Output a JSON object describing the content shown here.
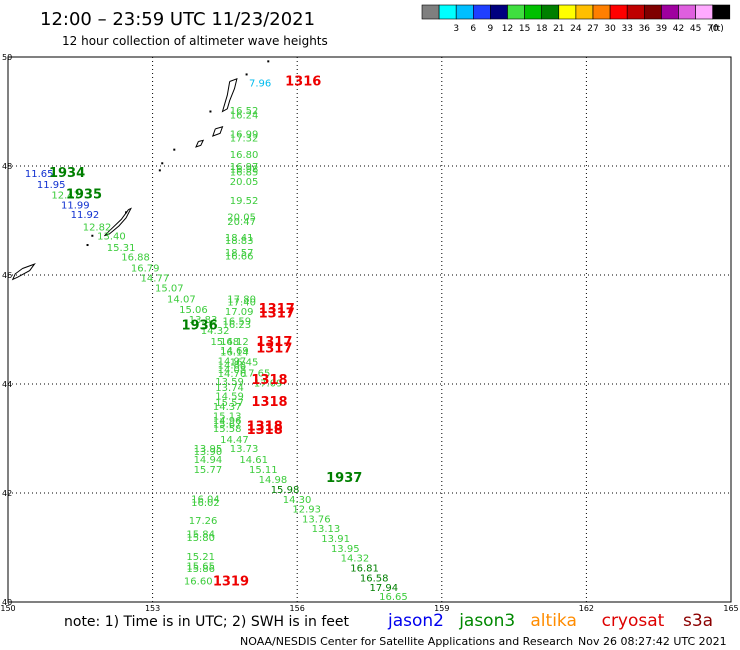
{
  "header": {
    "title": "12:00 – 23:59 UTC 11/23/2021",
    "subtitle": "12 hour collection of altimeter wave heights"
  },
  "legend": {
    "unit": "(ft)",
    "bins": [
      {
        "label": "",
        "color": "#7f7f7f"
      },
      {
        "label": "3",
        "color": "#00ffff"
      },
      {
        "label": "6",
        "color": "#00bfff"
      },
      {
        "label": "9",
        "color": "#1f3fff"
      },
      {
        "label": "12",
        "color": "#00007f"
      },
      {
        "label": "15",
        "color": "#3fdf3f"
      },
      {
        "label": "18",
        "color": "#00c000"
      },
      {
        "label": "21",
        "color": "#007f00"
      },
      {
        "label": "24",
        "color": "#ffff00"
      },
      {
        "label": "27",
        "color": "#ffbf00"
      },
      {
        "label": "30",
        "color": "#ff7f00"
      },
      {
        "label": "33",
        "color": "#ff0000"
      },
      {
        "label": "36",
        "color": "#bf0000"
      },
      {
        "label": "39",
        "color": "#7f0000"
      },
      {
        "label": "42",
        "color": "#9f009f"
      },
      {
        "label": "45",
        "color": "#df5fdf"
      },
      {
        "label": "70",
        "color": "#ffaaff"
      },
      {
        "label": "",
        "color": "#000000"
      }
    ]
  },
  "footer": {
    "note": "note:  1) Time is in UTC;  2) SWH is in feet",
    "credit": "NOAA/NESDIS Center for Satellite Applications and Research",
    "timestamp": "Nov 26 08:27:42 UTC 2021"
  },
  "chart_data": {
    "type": "scatter",
    "xlim": [
      150,
      165
    ],
    "ylim": [
      40,
      50
    ],
    "x_ticks": [
      "150",
      "153",
      "156",
      "159",
      "162",
      "165"
    ],
    "y_ticks": [
      "40",
      "42",
      "44",
      "46",
      "48",
      "50"
    ],
    "grid": true,
    "series_legend": [
      {
        "name": "jason2",
        "color": "#0000ee"
      },
      {
        "name": "jason3",
        "color": "#008800"
      },
      {
        "name": "altika",
        "color": "#ff8c00"
      },
      {
        "name": "cryosat",
        "color": "#dd0000"
      },
      {
        "name": "s3a",
        "color": "#8b0000"
      }
    ],
    "point_colors": {
      "cyan": "#00bbee",
      "blue": "#1030d0",
      "light": "#3ccc3c",
      "dark": "#007f00",
      "red": "#ee0000"
    },
    "time_labels": [
      {
        "text": "1316",
        "x": 155.75,
        "y": 49.48,
        "color": "red"
      },
      {
        "text": "1934",
        "x": 150.85,
        "y": 47.8,
        "color": "dark"
      },
      {
        "text": "1935",
        "x": 151.2,
        "y": 47.4,
        "color": "dark"
      },
      {
        "text": "1317",
        "x": 155.2,
        "y": 45.3,
        "color": "red"
      },
      {
        "text": "1317",
        "x": 155.2,
        "y": 45.22,
        "color": "red"
      },
      {
        "text": "1317",
        "x": 155.15,
        "y": 44.7,
        "color": "red"
      },
      {
        "text": "1317",
        "x": 155.15,
        "y": 44.58,
        "color": "red"
      },
      {
        "text": "1936",
        "x": 153.6,
        "y": 45.0,
        "color": "dark"
      },
      {
        "text": "1318",
        "x": 155.05,
        "y": 44.0,
        "color": "red"
      },
      {
        "text": "1318",
        "x": 155.05,
        "y": 43.6,
        "color": "red"
      },
      {
        "text": "1318",
        "x": 154.95,
        "y": 43.15,
        "color": "red"
      },
      {
        "text": "1318",
        "x": 154.95,
        "y": 43.08,
        "color": "red"
      },
      {
        "text": "1937",
        "x": 156.6,
        "y": 42.2,
        "color": "dark"
      },
      {
        "text": "1319",
        "x": 154.25,
        "y": 40.3,
        "color": "red"
      }
    ],
    "points": [
      {
        "v": "7.96",
        "x": 155.0,
        "y": 49.46,
        "c": "cyan"
      },
      {
        "v": "16.52",
        "x": 154.6,
        "y": 48.95,
        "c": "light"
      },
      {
        "v": "16.24",
        "x": 154.6,
        "y": 48.87,
        "c": "light"
      },
      {
        "v": "16.99",
        "x": 154.6,
        "y": 48.52,
        "c": "light"
      },
      {
        "v": "17.32",
        "x": 154.6,
        "y": 48.45,
        "c": "light"
      },
      {
        "v": "16.80",
        "x": 154.6,
        "y": 48.15,
        "c": "light"
      },
      {
        "v": "16.97",
        "x": 154.6,
        "y": 47.93,
        "c": "light"
      },
      {
        "v": "16.98",
        "x": 154.6,
        "y": 47.88,
        "c": "light"
      },
      {
        "v": "16.85",
        "x": 154.6,
        "y": 47.83,
        "c": "light"
      },
      {
        "v": "20.05",
        "x": 154.6,
        "y": 47.65,
        "c": "light"
      },
      {
        "v": "19.52",
        "x": 154.6,
        "y": 47.3,
        "c": "light"
      },
      {
        "v": "20.05",
        "x": 154.55,
        "y": 47.0,
        "c": "light"
      },
      {
        "v": "20.47",
        "x": 154.55,
        "y": 46.92,
        "c": "light"
      },
      {
        "v": "18.41",
        "x": 154.5,
        "y": 46.62,
        "c": "light"
      },
      {
        "v": "18.83",
        "x": 154.5,
        "y": 46.57,
        "c": "light"
      },
      {
        "v": "18.57",
        "x": 154.5,
        "y": 46.35,
        "c": "light"
      },
      {
        "v": "16.66",
        "x": 154.5,
        "y": 46.28,
        "c": "light"
      },
      {
        "v": "11.65",
        "x": 150.35,
        "y": 47.8,
        "c": "blue"
      },
      {
        "v": "11.95",
        "x": 150.6,
        "y": 47.6,
        "c": "blue"
      },
      {
        "v": "12.47",
        "x": 150.9,
        "y": 47.4,
        "c": "light"
      },
      {
        "v": "11.99",
        "x": 151.1,
        "y": 47.22,
        "c": "blue"
      },
      {
        "v": "11.92",
        "x": 151.3,
        "y": 47.05,
        "c": "blue"
      },
      {
        "v": "12.82",
        "x": 151.55,
        "y": 46.82,
        "c": "light"
      },
      {
        "v": "13.40",
        "x": 151.85,
        "y": 46.65,
        "c": "light"
      },
      {
        "v": "15.31",
        "x": 152.05,
        "y": 46.44,
        "c": "light"
      },
      {
        "v": "16.88",
        "x": 152.35,
        "y": 46.27,
        "c": "light"
      },
      {
        "v": "16.79",
        "x": 152.55,
        "y": 46.06,
        "c": "light"
      },
      {
        "v": "14.77",
        "x": 152.75,
        "y": 45.88,
        "c": "light"
      },
      {
        "v": "15.07",
        "x": 153.05,
        "y": 45.7,
        "c": "light"
      },
      {
        "v": "14.07",
        "x": 153.3,
        "y": 45.5,
        "c": "light"
      },
      {
        "v": "15.06",
        "x": 153.55,
        "y": 45.3,
        "c": "light"
      },
      {
        "v": "13.83",
        "x": 153.75,
        "y": 45.12,
        "c": "light"
      },
      {
        "v": "14.32",
        "x": 154.0,
        "y": 44.92,
        "c": "light"
      },
      {
        "v": "15.68",
        "x": 154.2,
        "y": 44.72,
        "c": "light"
      },
      {
        "v": "16.14",
        "x": 154.4,
        "y": 44.52,
        "c": "light"
      },
      {
        "v": "16.45",
        "x": 154.6,
        "y": 44.34,
        "c": "light"
      },
      {
        "v": "17.65",
        "x": 154.85,
        "y": 44.14,
        "c": "light"
      },
      {
        "v": "17.09",
        "x": 155.1,
        "y": 43.95,
        "c": "light"
      },
      {
        "v": "17.80",
        "x": 154.55,
        "y": 45.5,
        "c": "light"
      },
      {
        "v": "17.40",
        "x": 154.55,
        "y": 45.44,
        "c": "light"
      },
      {
        "v": "17.09",
        "x": 154.5,
        "y": 45.27,
        "c": "light"
      },
      {
        "v": "16.59",
        "x": 154.45,
        "y": 45.09,
        "c": "light"
      },
      {
        "v": "16.23",
        "x": 154.45,
        "y": 45.03,
        "c": "light"
      },
      {
        "v": "14.12",
        "x": 154.4,
        "y": 44.72,
        "c": "light"
      },
      {
        "v": "14.69",
        "x": 154.4,
        "y": 44.55,
        "c": "light"
      },
      {
        "v": "14.97",
        "x": 154.35,
        "y": 44.36,
        "c": "light"
      },
      {
        "v": "14.88",
        "x": 154.35,
        "y": 44.28,
        "c": "light"
      },
      {
        "v": "14.08",
        "x": 154.35,
        "y": 44.2,
        "c": "light"
      },
      {
        "v": "14.76",
        "x": 154.35,
        "y": 44.13,
        "c": "light"
      },
      {
        "v": "13.59",
        "x": 154.3,
        "y": 43.98,
        "c": "light"
      },
      {
        "v": "13.74",
        "x": 154.3,
        "y": 43.87,
        "c": "light"
      },
      {
        "v": "14.59",
        "x": 154.3,
        "y": 43.72,
        "c": "light"
      },
      {
        "v": "15.57",
        "x": 154.3,
        "y": 43.6,
        "c": "light"
      },
      {
        "v": "14.37",
        "x": 154.25,
        "y": 43.52,
        "c": "light"
      },
      {
        "v": "15.13",
        "x": 154.25,
        "y": 43.35,
        "c": "light"
      },
      {
        "v": "14.96",
        "x": 154.25,
        "y": 43.27,
        "c": "light"
      },
      {
        "v": "15.67",
        "x": 154.25,
        "y": 43.2,
        "c": "light"
      },
      {
        "v": "15.58",
        "x": 154.25,
        "y": 43.12,
        "c": "light"
      },
      {
        "v": "14.47",
        "x": 154.4,
        "y": 42.92,
        "c": "light"
      },
      {
        "v": "13.73",
        "x": 154.6,
        "y": 42.75,
        "c": "light"
      },
      {
        "v": "14.61",
        "x": 154.8,
        "y": 42.55,
        "c": "light"
      },
      {
        "v": "15.11",
        "x": 155.0,
        "y": 42.37,
        "c": "light"
      },
      {
        "v": "14.98",
        "x": 155.2,
        "y": 42.18,
        "c": "light"
      },
      {
        "v": "15.98",
        "x": 155.45,
        "y": 42.0,
        "c": "dark"
      },
      {
        "v": "14.30",
        "x": 155.7,
        "y": 41.82,
        "c": "light"
      },
      {
        "v": "12.93",
        "x": 155.9,
        "y": 41.64,
        "c": "light"
      },
      {
        "v": "13.76",
        "x": 156.1,
        "y": 41.46,
        "c": "light"
      },
      {
        "v": "13.13",
        "x": 156.3,
        "y": 41.28,
        "c": "light"
      },
      {
        "v": "13.91",
        "x": 156.5,
        "y": 41.1,
        "c": "light"
      },
      {
        "v": "13.95",
        "x": 156.7,
        "y": 40.92,
        "c": "light"
      },
      {
        "v": "14.32",
        "x": 156.9,
        "y": 40.74,
        "c": "light"
      },
      {
        "v": "16.81",
        "x": 157.1,
        "y": 40.56,
        "c": "dark"
      },
      {
        "v": "16.58",
        "x": 157.3,
        "y": 40.38,
        "c": "dark"
      },
      {
        "v": "17.94",
        "x": 157.5,
        "y": 40.2,
        "c": "dark"
      },
      {
        "v": "16.65",
        "x": 157.7,
        "y": 40.04,
        "c": "light"
      },
      {
        "v": "13.95",
        "x": 153.85,
        "y": 42.75,
        "c": "light"
      },
      {
        "v": "13.90",
        "x": 153.85,
        "y": 42.7,
        "c": "light"
      },
      {
        "v": "14.94",
        "x": 153.85,
        "y": 42.55,
        "c": "light"
      },
      {
        "v": "15.77",
        "x": 153.85,
        "y": 42.37,
        "c": "light"
      },
      {
        "v": "16.04",
        "x": 153.8,
        "y": 41.83,
        "c": "light"
      },
      {
        "v": "16.02",
        "x": 153.8,
        "y": 41.76,
        "c": "light"
      },
      {
        "v": "17.26",
        "x": 153.75,
        "y": 41.43,
        "c": "light"
      },
      {
        "v": "15.84",
        "x": 153.7,
        "y": 41.18,
        "c": "light"
      },
      {
        "v": "15.80",
        "x": 153.7,
        "y": 41.12,
        "c": "light"
      },
      {
        "v": "15.21",
        "x": 153.7,
        "y": 40.77,
        "c": "light"
      },
      {
        "v": "15.65",
        "x": 153.7,
        "y": 40.6,
        "c": "light"
      },
      {
        "v": "15.86",
        "x": 153.7,
        "y": 40.55,
        "c": "light"
      },
      {
        "v": "16.60",
        "x": 153.65,
        "y": 40.32,
        "c": "light"
      }
    ],
    "islands": [
      [
        [
          154.6,
          49.55
        ],
        [
          154.75,
          49.6
        ],
        [
          154.7,
          49.42
        ],
        [
          154.6,
          49.2
        ],
        [
          154.55,
          49.05
        ],
        [
          154.45,
          49.0
        ],
        [
          154.5,
          49.15
        ],
        [
          154.55,
          49.3
        ],
        [
          154.6,
          49.55
        ]
      ],
      [
        [
          154.3,
          48.68
        ],
        [
          154.45,
          48.72
        ],
        [
          154.4,
          48.6
        ],
        [
          154.25,
          48.55
        ],
        [
          154.3,
          48.68
        ]
      ],
      [
        [
          153.95,
          48.45
        ],
        [
          154.05,
          48.47
        ],
        [
          154.0,
          48.38
        ],
        [
          153.9,
          48.35
        ],
        [
          153.95,
          48.45
        ]
      ],
      [
        [
          152.5,
          47.2
        ],
        [
          152.55,
          47.22
        ],
        [
          152.45,
          47.05
        ],
        [
          152.3,
          46.9
        ],
        [
          152.1,
          46.75
        ],
        [
          152.0,
          46.72
        ],
        [
          152.15,
          46.85
        ],
        [
          152.35,
          47.02
        ],
        [
          152.5,
          47.2
        ]
      ],
      [
        [
          150.3,
          46.12
        ],
        [
          150.55,
          46.2
        ],
        [
          150.45,
          46.08
        ],
        [
          150.2,
          45.96
        ],
        [
          150.1,
          45.92
        ],
        [
          150.15,
          46.02
        ],
        [
          150.3,
          46.12
        ]
      ]
    ],
    "island_dots": [
      [
        154.95,
        49.68
      ],
      [
        155.4,
        49.92
      ],
      [
        153.45,
        48.3
      ],
      [
        153.2,
        48.05
      ],
      [
        153.15,
        47.92
      ],
      [
        152.45,
        47.15
      ],
      [
        151.75,
        46.72
      ],
      [
        151.65,
        46.55
      ],
      [
        154.2,
        49.0
      ]
    ]
  }
}
